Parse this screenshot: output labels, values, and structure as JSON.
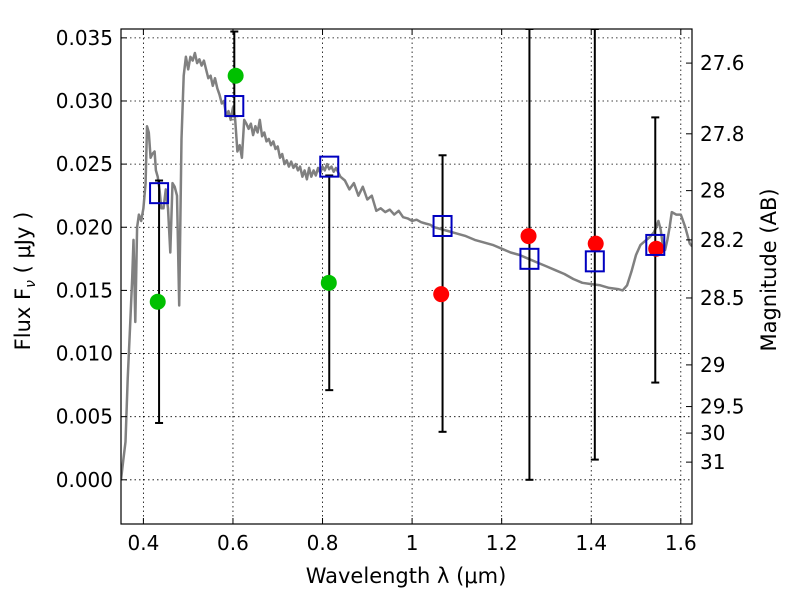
{
  "chart_data": {
    "type": "scatter",
    "xlabel": "Wavelength  λ (μm)",
    "ylabel": "Flux  F",
    "ylabel_sub": "ν",
    "ylabel_units": " ( μJy )",
    "y2label": "Magnitude (AB)",
    "xlim": [
      0.35,
      1.625
    ],
    "ylim": [
      -0.0035,
      0.0357
    ],
    "grid": true,
    "x_ticks": [
      0.4,
      0.6,
      0.8,
      1.0,
      1.2,
      1.4,
      1.6
    ],
    "x_tick_labels": [
      "0.4",
      "0.6",
      "0.8",
      "1",
      "1.2",
      "1.4",
      "1.6"
    ],
    "y_ticks": [
      0.0,
      0.005,
      0.01,
      0.015,
      0.02,
      0.025,
      0.03,
      0.035
    ],
    "y_tick_labels": [
      "0.000",
      "0.005",
      "0.010",
      "0.015",
      "0.020",
      "0.025",
      "0.030",
      "0.035"
    ],
    "y2_ticks": [
      {
        "label": "27.6",
        "flux": 0.033
      },
      {
        "label": "27.8",
        "flux": 0.0274
      },
      {
        "label": "28",
        "flux": 0.0229
      },
      {
        "label": "28.2",
        "flux": 0.019
      },
      {
        "label": "28.5",
        "flux": 0.0144
      },
      {
        "label": "29",
        "flux": 0.0091
      },
      {
        "label": "29.5",
        "flux": 0.0058
      },
      {
        "label": "30",
        "flux": 0.0037
      },
      {
        "label": "31",
        "flux": 0.0014
      }
    ],
    "model_spectrum": {
      "color": "#808080",
      "points": [
        [
          0.35,
          0.0
        ],
        [
          0.355,
          0.0015
        ],
        [
          0.36,
          0.003
        ],
        [
          0.365,
          0.008
        ],
        [
          0.37,
          0.012
        ],
        [
          0.375,
          0.016
        ],
        [
          0.378,
          0.019
        ],
        [
          0.382,
          0.0125
        ],
        [
          0.386,
          0.02
        ],
        [
          0.39,
          0.021
        ],
        [
          0.395,
          0.0205
        ],
        [
          0.4,
          0.0215
        ],
        [
          0.405,
          0.0235
        ],
        [
          0.408,
          0.028
        ],
        [
          0.412,
          0.0275
        ],
        [
          0.416,
          0.0255
        ],
        [
          0.42,
          0.0258
        ],
        [
          0.425,
          0.026
        ],
        [
          0.428,
          0.0245
        ],
        [
          0.432,
          0.024
        ],
        [
          0.436,
          0.023
        ],
        [
          0.44,
          0.0215
        ],
        [
          0.445,
          0.0215
        ],
        [
          0.45,
          0.023
        ],
        [
          0.455,
          0.0215
        ],
        [
          0.46,
          0.018
        ],
        [
          0.465,
          0.0235
        ],
        [
          0.47,
          0.0232
        ],
        [
          0.475,
          0.0225
        ],
        [
          0.48,
          0.0138
        ],
        [
          0.485,
          0.027
        ],
        [
          0.49,
          0.032
        ],
        [
          0.495,
          0.0335
        ],
        [
          0.5,
          0.0325
        ],
        [
          0.505,
          0.0335
        ],
        [
          0.51,
          0.0332
        ],
        [
          0.515,
          0.0338
        ],
        [
          0.52,
          0.033
        ],
        [
          0.525,
          0.0333
        ],
        [
          0.53,
          0.0328
        ],
        [
          0.535,
          0.0332
        ],
        [
          0.54,
          0.0325
        ],
        [
          0.545,
          0.0318
        ],
        [
          0.55,
          0.032
        ],
        [
          0.555,
          0.0312
        ],
        [
          0.56,
          0.0318
        ],
        [
          0.565,
          0.031
        ],
        [
          0.57,
          0.0305
        ],
        [
          0.575,
          0.0298
        ],
        [
          0.58,
          0.03
        ],
        [
          0.585,
          0.0288
        ],
        [
          0.59,
          0.0292
        ],
        [
          0.595,
          0.0285
        ],
        [
          0.6,
          0.0295
        ],
        [
          0.605,
          0.0285
        ],
        [
          0.61,
          0.026
        ],
        [
          0.615,
          0.0265
        ],
        [
          0.62,
          0.0255
        ],
        [
          0.625,
          0.0285
        ],
        [
          0.63,
          0.0282
        ],
        [
          0.635,
          0.0278
        ],
        [
          0.64,
          0.0282
        ],
        [
          0.645,
          0.0273
        ],
        [
          0.65,
          0.028
        ],
        [
          0.655,
          0.0275
        ],
        [
          0.66,
          0.0285
        ],
        [
          0.665,
          0.0272
        ],
        [
          0.67,
          0.0275
        ],
        [
          0.675,
          0.0268
        ],
        [
          0.68,
          0.027
        ],
        [
          0.685,
          0.0265
        ],
        [
          0.69,
          0.0268
        ],
        [
          0.695,
          0.0262
        ],
        [
          0.7,
          0.0264
        ],
        [
          0.705,
          0.0255
        ],
        [
          0.71,
          0.0258
        ],
        [
          0.715,
          0.025
        ],
        [
          0.72,
          0.0253
        ],
        [
          0.725,
          0.0248
        ],
        [
          0.73,
          0.0252
        ],
        [
          0.735,
          0.0247
        ],
        [
          0.74,
          0.025
        ],
        [
          0.745,
          0.0245
        ],
        [
          0.75,
          0.0248
        ],
        [
          0.755,
          0.024
        ],
        [
          0.76,
          0.0245
        ],
        [
          0.765,
          0.0238
        ],
        [
          0.77,
          0.0247
        ],
        [
          0.775,
          0.024
        ],
        [
          0.78,
          0.0245
        ],
        [
          0.785,
          0.0241
        ],
        [
          0.79,
          0.0247
        ],
        [
          0.795,
          0.0243
        ],
        [
          0.8,
          0.0248
        ],
        [
          0.805,
          0.0245
        ],
        [
          0.81,
          0.025
        ],
        [
          0.815,
          0.0246
        ],
        [
          0.82,
          0.0248
        ],
        [
          0.825,
          0.0244
        ],
        [
          0.83,
          0.0247
        ],
        [
          0.84,
          0.024
        ],
        [
          0.85,
          0.0237
        ],
        [
          0.86,
          0.023
        ],
        [
          0.87,
          0.0235
        ],
        [
          0.88,
          0.0225
        ],
        [
          0.89,
          0.0232
        ],
        [
          0.9,
          0.0222
        ],
        [
          0.91,
          0.0225
        ],
        [
          0.92,
          0.0213
        ],
        [
          0.93,
          0.0215
        ],
        [
          0.94,
          0.0212
        ],
        [
          0.95,
          0.0214
        ],
        [
          0.96,
          0.021
        ],
        [
          0.97,
          0.0213
        ],
        [
          0.98,
          0.0208
        ],
        [
          0.99,
          0.0207
        ],
        [
          1.0,
          0.0205
        ],
        [
          1.01,
          0.0206
        ],
        [
          1.02,
          0.0204
        ],
        [
          1.03,
          0.0203
        ],
        [
          1.04,
          0.0202
        ],
        [
          1.05,
          0.02
        ],
        [
          1.06,
          0.0199
        ],
        [
          1.07,
          0.0198
        ],
        [
          1.08,
          0.0197
        ],
        [
          1.1,
          0.0195
        ],
        [
          1.12,
          0.0193
        ],
        [
          1.14,
          0.019
        ],
        [
          1.16,
          0.0188
        ],
        [
          1.18,
          0.0186
        ],
        [
          1.2,
          0.0183
        ],
        [
          1.22,
          0.018
        ],
        [
          1.24,
          0.0178
        ],
        [
          1.26,
          0.0175
        ],
        [
          1.28,
          0.0172
        ],
        [
          1.3,
          0.0169
        ],
        [
          1.32,
          0.0166
        ],
        [
          1.34,
          0.0163
        ],
        [
          1.36,
          0.0159
        ],
        [
          1.38,
          0.0156
        ],
        [
          1.4,
          0.0155
        ],
        [
          1.42,
          0.0154
        ],
        [
          1.44,
          0.0152
        ],
        [
          1.46,
          0.0151
        ],
        [
          1.47,
          0.015
        ],
        [
          1.48,
          0.0154
        ],
        [
          1.49,
          0.0165
        ],
        [
          1.5,
          0.0178
        ],
        [
          1.51,
          0.0186
        ],
        [
          1.52,
          0.0189
        ],
        [
          1.53,
          0.0192
        ],
        [
          1.54,
          0.0196
        ],
        [
          1.545,
          0.02
        ],
        [
          1.55,
          0.0205
        ],
        [
          1.555,
          0.0198
        ],
        [
          1.56,
          0.0185
        ],
        [
          1.565,
          0.0182
        ],
        [
          1.57,
          0.019
        ],
        [
          1.575,
          0.02
        ],
        [
          1.58,
          0.0212
        ],
        [
          1.59,
          0.021
        ],
        [
          1.6,
          0.021
        ],
        [
          1.61,
          0.02
        ],
        [
          1.62,
          0.0187
        ],
        [
          1.625,
          0.0185
        ]
      ]
    },
    "series": [
      {
        "marker": "circle",
        "color": "#00c000",
        "points": [
          {
            "x": 0.432,
            "y": 0.0141
          },
          {
            "x": 0.606,
            "y": 0.032
          },
          {
            "x": 0.814,
            "y": 0.0156
          }
        ]
      },
      {
        "marker": "circle",
        "color": "#ff0000",
        "points": [
          {
            "x": 1.065,
            "y": 0.0147
          },
          {
            "x": 1.26,
            "y": 0.0193
          },
          {
            "x": 1.41,
            "y": 0.0187
          },
          {
            "x": 1.545,
            "y": 0.0183
          }
        ]
      },
      {
        "marker": "square",
        "color": "#0000c0",
        "points": [
          {
            "x": 0.435,
            "y": 0.0227,
            "ylo": 0.0045,
            "yhi": 0.0237
          },
          {
            "x": 0.603,
            "y": 0.0296,
            "ylo": 0.0288,
            "yhi": 0.0355
          },
          {
            "x": 0.815,
            "y": 0.0248,
            "ylo": 0.0071,
            "yhi": 0.0241
          },
          {
            "x": 1.068,
            "y": 0.0201,
            "ylo": 0.0038,
            "yhi": 0.0257
          },
          {
            "x": 1.262,
            "y": 0.0175,
            "ylo": 0.0,
            "yhi": 0.0357
          },
          {
            "x": 1.408,
            "y": 0.0173,
            "ylo": 0.0016,
            "yhi": 0.0357
          },
          {
            "x": 1.543,
            "y": 0.0186,
            "ylo": 0.0077,
            "yhi": 0.0287
          }
        ]
      }
    ]
  }
}
